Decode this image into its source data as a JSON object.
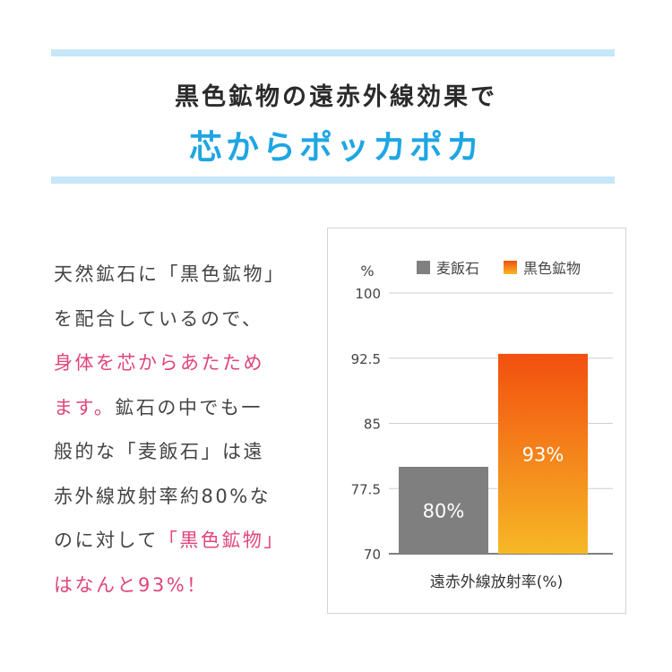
{
  "header": {
    "title": "黒色鉱物の遠赤外線効果で",
    "subtitle": "芯からポッカポカ"
  },
  "body_text": {
    "segments": [
      {
        "text": "天然鉱石に「黒色鉱物」",
        "color": "#444444"
      },
      {
        "text": "を配合しているので、",
        "color": "#444444"
      },
      {
        "text": "身体を芯からあたため",
        "color": "#e0457b"
      },
      {
        "text": "ます。",
        "color": "#e0457b",
        "inline": "鉱石の中でも一"
      },
      {
        "text": "般的な「麦飯石」は遠",
        "color": "#444444"
      },
      {
        "text": "赤外線放射率約80%な",
        "color": "#444444"
      },
      {
        "text": "のに対して",
        "color": "#444444",
        "pink_tail": "「黒色鉱物」"
      },
      {
        "text": "はなんと93%！",
        "color": "#e0457b"
      }
    ]
  },
  "chart_data": {
    "type": "bar",
    "categories": [
      "麦飯石",
      "黒色鉱物"
    ],
    "values": [
      80,
      93
    ],
    "value_labels": [
      "80%",
      "93%"
    ],
    "xlabel": "遠赤外線放射率(%)",
    "ylabel": "%",
    "ylim": [
      70,
      100
    ],
    "yticks": [
      70,
      77.5,
      85,
      92.5,
      100
    ],
    "ytick_labels": [
      "70",
      "77.5",
      "85",
      "92.5",
      "100"
    ],
    "grid": true,
    "legend": {
      "placement": "top-right",
      "entries": [
        {
          "label": "麦飯石",
          "color": "#808080"
        },
        {
          "label": "黒色鉱物",
          "color": "#f2621a"
        }
      ]
    },
    "colors": {
      "bar1": "#7f7f7f",
      "bar2_top": "#f24f0f",
      "bar2_bottom": "#f6b826",
      "value_label": "#ffffff"
    }
  }
}
